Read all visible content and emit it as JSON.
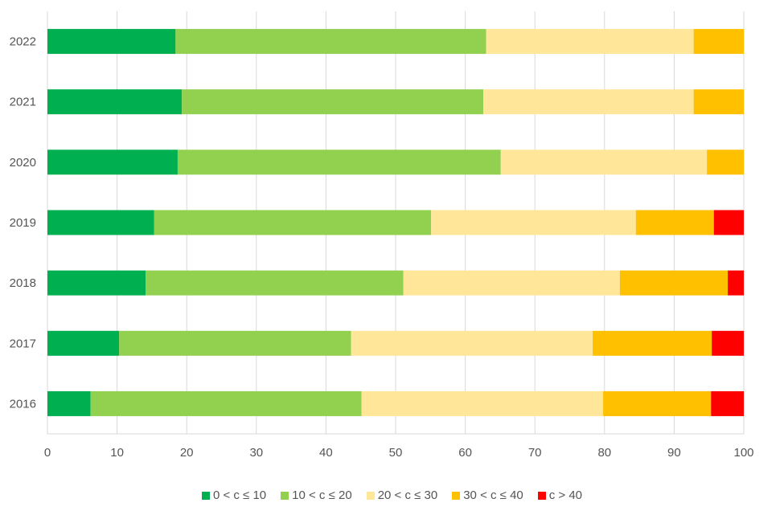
{
  "chart_data": {
    "type": "bar",
    "orientation": "horizontal",
    "stacked": true,
    "categories": [
      "2022",
      "2021",
      "2020",
      "2019",
      "2018",
      "2017",
      "2016"
    ],
    "series": [
      {
        "name": "0 < c ≤ 10",
        "color": "#00b050",
        "values": [
          18.4,
          19.3,
          18.7,
          15.3,
          14.1,
          10.3,
          6.2
        ]
      },
      {
        "name": "10 < c ≤ 20",
        "color": "#92d050",
        "values": [
          44.6,
          43.3,
          46.4,
          39.8,
          37.0,
          33.3,
          38.9
        ]
      },
      {
        "name": "20 < c ≤ 30",
        "color": "#ffe699",
        "values": [
          29.8,
          30.2,
          29.6,
          29.4,
          31.1,
          34.7,
          34.7
        ]
      },
      {
        "name": "30 < c ≤ 40",
        "color": "#ffc000",
        "values": [
          7.2,
          7.2,
          5.3,
          11.2,
          15.5,
          17.1,
          15.5
        ]
      },
      {
        "name": "c > 40",
        "color": "#ff0000",
        "values": [
          0,
          0,
          0,
          4.3,
          2.3,
          4.6,
          4.7
        ]
      }
    ],
    "xlim": [
      0,
      100
    ],
    "xticks": [
      "0",
      "10",
      "20",
      "30",
      "40",
      "50",
      "60",
      "70",
      "80",
      "90",
      "100"
    ],
    "grid": true,
    "legend_position": "bottom",
    "title": "",
    "xlabel": "",
    "ylabel": ""
  }
}
